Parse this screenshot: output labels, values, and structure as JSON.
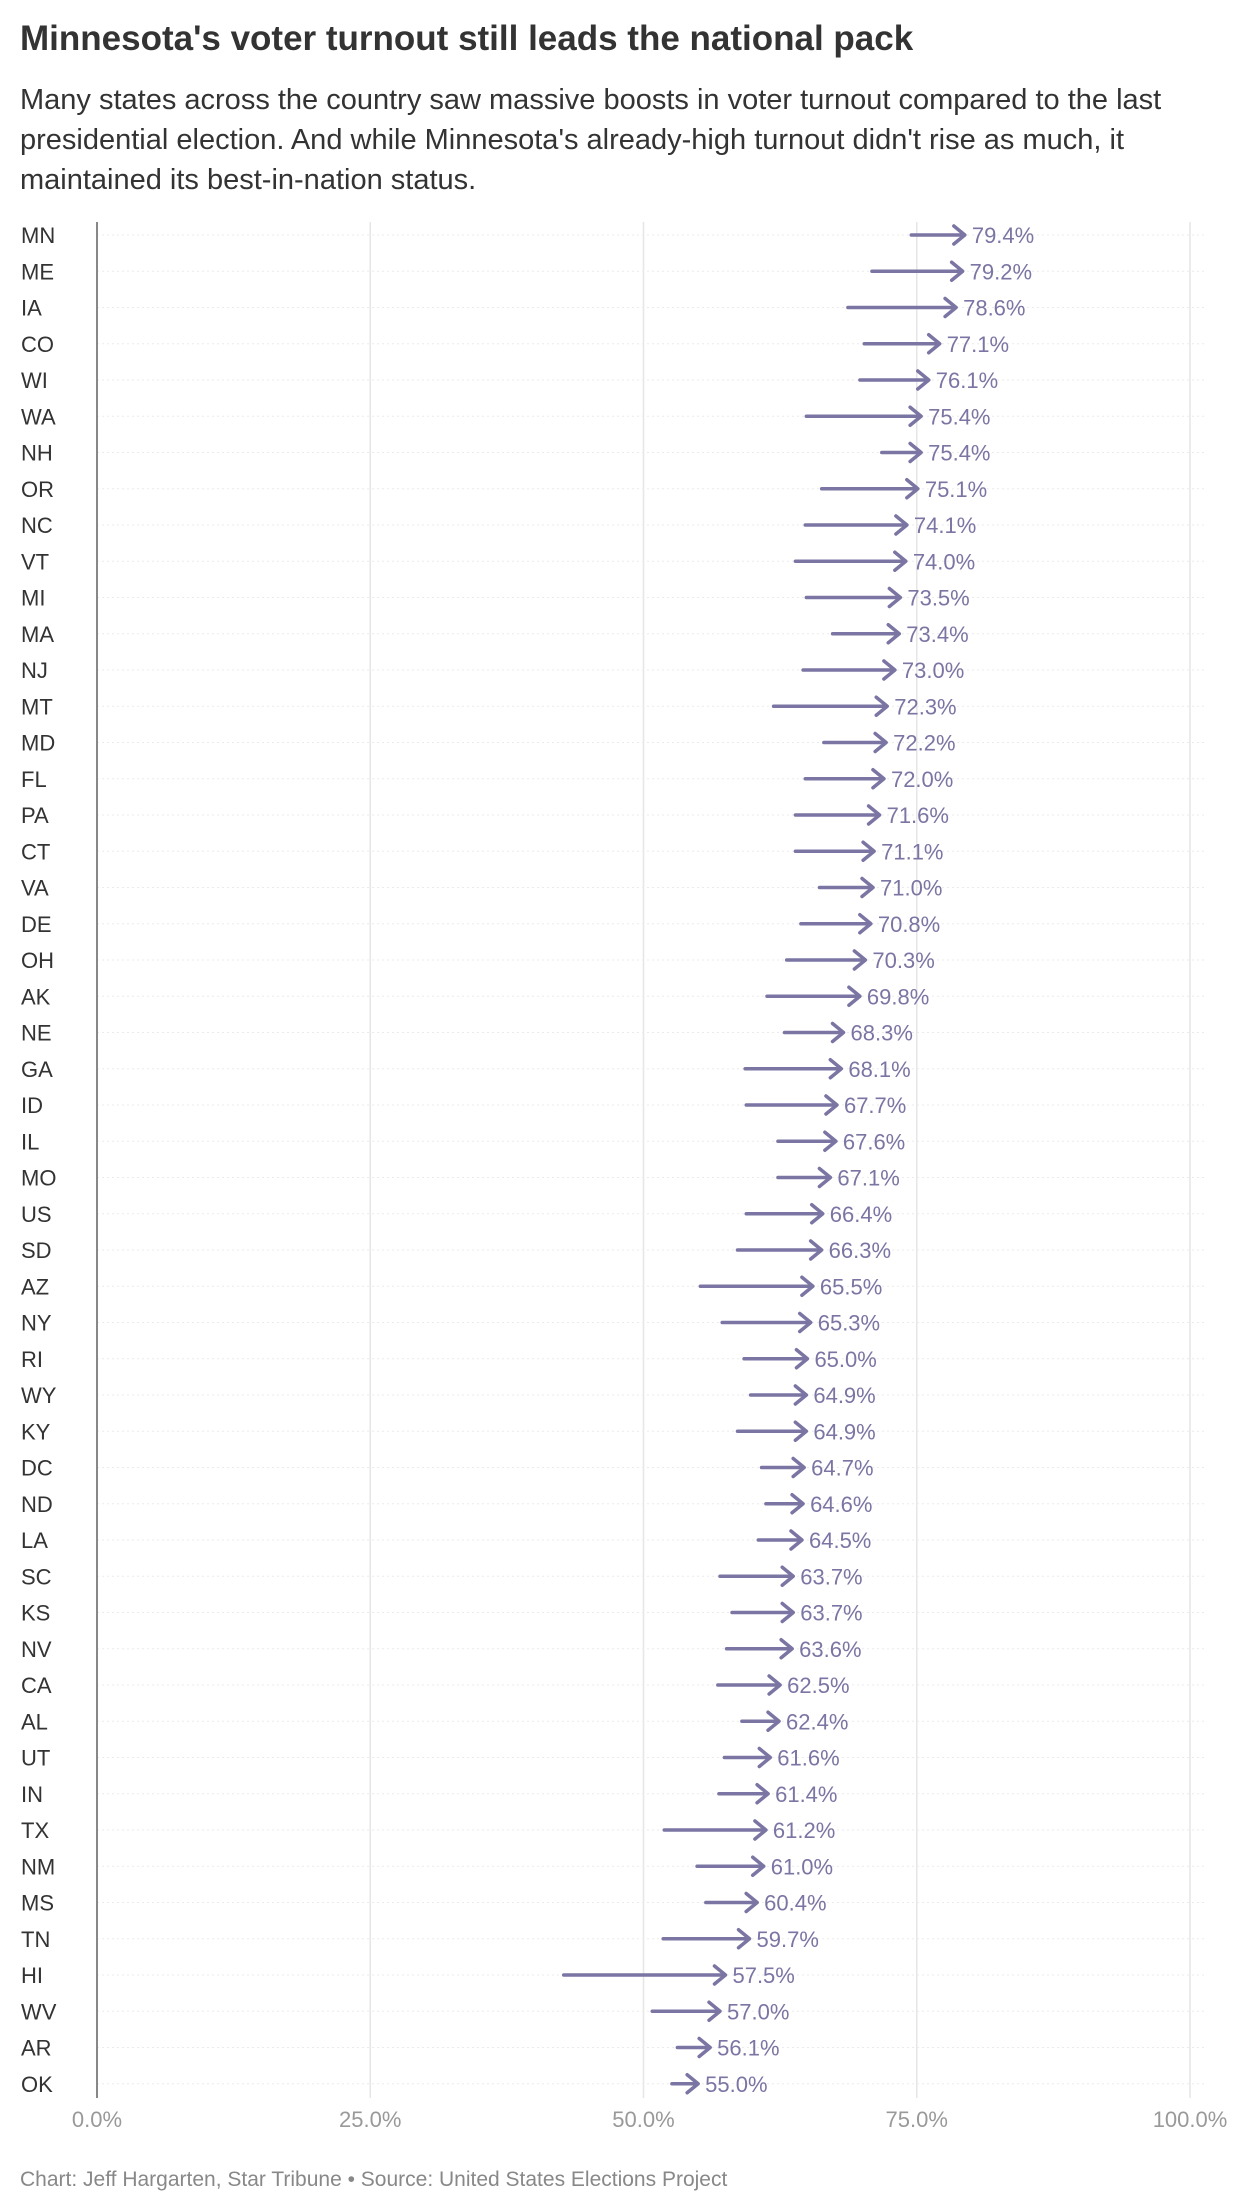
{
  "title": "Minnesota's voter turnout still leads the national pack",
  "subtitle": "Many states across the country saw massive boosts in voter turnout compared to the last presidential election. And while Minnesota's already-high turnout didn't rise as much, it maintained its best-in-nation status.",
  "credit": "Chart: Jeff Hargarten, Star Tribune • Source: United States Elections Project",
  "colors": {
    "arrow": "#7a75a3",
    "label": "#7a75a3",
    "grid": "#e6e6e6",
    "axis": "#888888",
    "state_text": "#333333",
    "tick_text": "#999999"
  },
  "chart_data": {
    "type": "arrow",
    "x_unit": "voter turnout (%)",
    "xlim": [
      0,
      100
    ],
    "x_ticks": [
      0,
      25,
      50,
      75,
      100
    ],
    "x_tick_labels": [
      "0.0%",
      "25.0%",
      "50.0%",
      "75.0%",
      "100.0%"
    ],
    "grid": true,
    "rows": [
      {
        "state": "MN",
        "from": 74.5,
        "to": 79.4,
        "label": "79.4%"
      },
      {
        "state": "ME",
        "from": 70.9,
        "to": 79.2,
        "label": "79.2%"
      },
      {
        "state": "IA",
        "from": 68.7,
        "to": 78.6,
        "label": "78.6%"
      },
      {
        "state": "CO",
        "from": 70.2,
        "to": 77.1,
        "label": "77.1%"
      },
      {
        "state": "WI",
        "from": 69.8,
        "to": 76.1,
        "label": "76.1%"
      },
      {
        "state": "WA",
        "from": 64.9,
        "to": 75.4,
        "label": "75.4%"
      },
      {
        "state": "NH",
        "from": 71.8,
        "to": 75.4,
        "label": "75.4%"
      },
      {
        "state": "OR",
        "from": 66.3,
        "to": 75.1,
        "label": "75.1%"
      },
      {
        "state": "NC",
        "from": 64.8,
        "to": 74.1,
        "label": "74.1%"
      },
      {
        "state": "VT",
        "from": 63.9,
        "to": 74.0,
        "label": "74.0%"
      },
      {
        "state": "MI",
        "from": 64.9,
        "to": 73.5,
        "label": "73.5%"
      },
      {
        "state": "MA",
        "from": 67.3,
        "to": 73.4,
        "label": "73.4%"
      },
      {
        "state": "NJ",
        "from": 64.6,
        "to": 73.0,
        "label": "73.0%"
      },
      {
        "state": "MT",
        "from": 61.9,
        "to": 72.3,
        "label": "72.3%"
      },
      {
        "state": "MD",
        "from": 66.5,
        "to": 72.2,
        "label": "72.2%"
      },
      {
        "state": "FL",
        "from": 64.8,
        "to": 72.0,
        "label": "72.0%"
      },
      {
        "state": "PA",
        "from": 63.9,
        "to": 71.6,
        "label": "71.6%"
      },
      {
        "state": "CT",
        "from": 63.9,
        "to": 71.1,
        "label": "71.1%"
      },
      {
        "state": "VA",
        "from": 66.1,
        "to": 71.0,
        "label": "71.0%"
      },
      {
        "state": "DE",
        "from": 64.4,
        "to": 70.8,
        "label": "70.8%"
      },
      {
        "state": "OH",
        "from": 63.1,
        "to": 70.3,
        "label": "70.3%"
      },
      {
        "state": "AK",
        "from": 61.3,
        "to": 69.8,
        "label": "69.8%"
      },
      {
        "state": "NE",
        "from": 62.9,
        "to": 68.3,
        "label": "68.3%"
      },
      {
        "state": "GA",
        "from": 59.3,
        "to": 68.1,
        "label": "68.1%"
      },
      {
        "state": "ID",
        "from": 59.4,
        "to": 67.7,
        "label": "67.7%"
      },
      {
        "state": "IL",
        "from": 62.3,
        "to": 67.6,
        "label": "67.6%"
      },
      {
        "state": "MO",
        "from": 62.3,
        "to": 67.1,
        "label": "67.1%"
      },
      {
        "state": "US",
        "from": 59.4,
        "to": 66.4,
        "label": "66.4%"
      },
      {
        "state": "SD",
        "from": 58.6,
        "to": 66.3,
        "label": "66.3%"
      },
      {
        "state": "AZ",
        "from": 55.2,
        "to": 65.5,
        "label": "65.5%"
      },
      {
        "state": "NY",
        "from": 57.2,
        "to": 65.3,
        "label": "65.3%"
      },
      {
        "state": "RI",
        "from": 59.2,
        "to": 65.0,
        "label": "65.0%"
      },
      {
        "state": "WY",
        "from": 59.8,
        "to": 64.9,
        "label": "64.9%"
      },
      {
        "state": "KY",
        "from": 58.6,
        "to": 64.9,
        "label": "64.9%"
      },
      {
        "state": "DC",
        "from": 60.8,
        "to": 64.7,
        "label": "64.7%"
      },
      {
        "state": "ND",
        "from": 61.2,
        "to": 64.6,
        "label": "64.6%"
      },
      {
        "state": "LA",
        "from": 60.5,
        "to": 64.5,
        "label": "64.5%"
      },
      {
        "state": "SC",
        "from": 57.0,
        "to": 63.7,
        "label": "63.7%"
      },
      {
        "state": "KS",
        "from": 58.1,
        "to": 63.7,
        "label": "63.7%"
      },
      {
        "state": "NV",
        "from": 57.6,
        "to": 63.6,
        "label": "63.6%"
      },
      {
        "state": "CA",
        "from": 56.8,
        "to": 62.5,
        "label": "62.5%"
      },
      {
        "state": "AL",
        "from": 59.0,
        "to": 62.4,
        "label": "62.4%"
      },
      {
        "state": "UT",
        "from": 57.4,
        "to": 61.6,
        "label": "61.6%"
      },
      {
        "state": "IN",
        "from": 56.9,
        "to": 61.4,
        "label": "61.4%"
      },
      {
        "state": "TX",
        "from": 51.9,
        "to": 61.2,
        "label": "61.2%"
      },
      {
        "state": "NM",
        "from": 54.9,
        "to": 61.0,
        "label": "61.0%"
      },
      {
        "state": "MS",
        "from": 55.7,
        "to": 60.4,
        "label": "60.4%"
      },
      {
        "state": "TN",
        "from": 51.8,
        "to": 59.7,
        "label": "59.7%"
      },
      {
        "state": "HI",
        "from": 42.7,
        "to": 57.5,
        "label": "57.5%"
      },
      {
        "state": "WV",
        "from": 50.8,
        "to": 57.0,
        "label": "57.0%"
      },
      {
        "state": "AR",
        "from": 53.1,
        "to": 56.1,
        "label": "56.1%"
      },
      {
        "state": "OK",
        "from": 52.6,
        "to": 55.0,
        "label": "55.0%"
      }
    ]
  }
}
